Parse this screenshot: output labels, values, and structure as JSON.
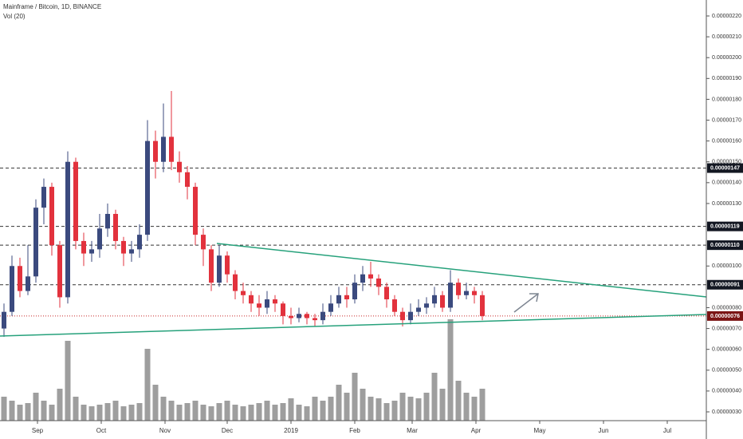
{
  "chart_data": {
    "type": "candlestick",
    "title": "Mainframe / Bitcoin, 1D, BINANCE",
    "subtitle": "Vol (20)",
    "up_color": "#3b4a7e",
    "down_color": "#e2323d",
    "volume_color": "#9e9e9e",
    "open": [
      7e-07,
      7.8e-07,
      1e-06,
      8.8e-07,
      9.5e-07,
      1.28e-06,
      1.38e-06,
      1.1e-06,
      8.5e-07,
      1.5e-06,
      1.12e-06,
      1.06e-06,
      1.08e-06,
      1.18e-06,
      1.25e-06,
      1.12e-06,
      1.06e-06,
      1.08e-06,
      1.15e-06,
      1.6e-06,
      1.5e-06,
      1.62e-06,
      1.5e-06,
      1.45e-06,
      1.38e-06,
      1.15e-06,
      1.08e-06,
      9.2e-07,
      1.05e-06,
      9.6e-07,
      8.8e-07,
      8.6e-07,
      8.2e-07,
      8e-07,
      8.4e-07,
      8.2e-07,
      7.6e-07,
      7.5e-07,
      7.7e-07,
      7.5e-07,
      7.4e-07,
      7.8e-07,
      8.2e-07,
      8.6e-07,
      8.4e-07,
      9.2e-07,
      9.6e-07,
      9.4e-07,
      9e-07,
      8.4e-07,
      7.8e-07,
      7.4e-07,
      7.8e-07,
      8e-07,
      8.2e-07,
      8.6e-07,
      8e-07,
      9.2e-07,
      8.6e-07,
      8.8e-07,
      8.6e-07
    ],
    "high": [
      8.2e-07,
      1.05e-06,
      1.04e-06,
      1.1e-06,
      1.32e-06,
      1.42e-06,
      1.4e-06,
      1.12e-06,
      1.55e-06,
      1.52e-06,
      1.16e-06,
      1.12e-06,
      1.25e-06,
      1.3e-06,
      1.27e-06,
      1.14e-06,
      1.12e-06,
      1.2e-06,
      1.7e-06,
      1.65e-06,
      1.78e-06,
      1.84e-06,
      1.55e-06,
      1.48e-06,
      1.4e-06,
      1.18e-06,
      1.1e-06,
      1.1e-06,
      1.07e-06,
      9.8e-07,
      9.2e-07,
      8.8e-07,
      8.6e-07,
      8.8e-07,
      8.6e-07,
      8.3e-07,
      8e-07,
      8e-07,
      7.8e-07,
      7.7e-07,
      8.2e-07,
      8.6e-07,
      9e-07,
      9e-07,
      9.6e-07,
      1e-06,
      1.02e-06,
      9.6e-07,
      9.2e-07,
      8.6e-07,
      8e-07,
      8.2e-07,
      8.4e-07,
      8.5e-07,
      9e-07,
      8.8e-07,
      9.8e-07,
      9.4e-07,
      9.2e-07,
      9e-07,
      8.8e-07
    ],
    "low": [
      6.6e-07,
      7.6e-07,
      8.5e-07,
      8.6e-07,
      9.2e-07,
      1.2e-06,
      1.05e-06,
      8e-07,
      8.2e-07,
      1.08e-06,
      1e-06,
      1.02e-06,
      1.04e-06,
      1.14e-06,
      1.08e-06,
      1e-06,
      1.02e-06,
      1.04e-06,
      1.12e-06,
      1.42e-06,
      1.45e-06,
      1.46e-06,
      1.4e-06,
      1.32e-06,
      1.1e-06,
      1e-06,
      8.8e-07,
      9e-07,
      9.2e-07,
      8.4e-07,
      8.2e-07,
      7.8e-07,
      7.6e-07,
      7.7e-07,
      7.8e-07,
      7.2e-07,
      7.2e-07,
      7.3e-07,
      7.2e-07,
      7.1e-07,
      7.2e-07,
      7.6e-07,
      8e-07,
      8e-07,
      8.2e-07,
      8.8e-07,
      9e-07,
      8.6e-07,
      8e-07,
      7.6e-07,
      7.1e-07,
      7.2e-07,
      7.6e-07,
      7.7e-07,
      8e-07,
      7.8e-07,
      7.8e-07,
      8.4e-07,
      8.4e-07,
      8.2e-07,
      7.4e-07
    ],
    "close": [
      7.8e-07,
      1e-06,
      8.8e-07,
      9.5e-07,
      1.28e-06,
      1.38e-06,
      1.1e-06,
      8.5e-07,
      1.5e-06,
      1.12e-06,
      1.06e-06,
      1.08e-06,
      1.18e-06,
      1.25e-06,
      1.12e-06,
      1.06e-06,
      1.08e-06,
      1.15e-06,
      1.6e-06,
      1.5e-06,
      1.62e-06,
      1.5e-06,
      1.45e-06,
      1.38e-06,
      1.15e-06,
      1.08e-06,
      9.2e-07,
      1.05e-06,
      9.6e-07,
      8.8e-07,
      8.6e-07,
      8.2e-07,
      8e-07,
      8.4e-07,
      8.2e-07,
      7.6e-07,
      7.5e-07,
      7.7e-07,
      7.5e-07,
      7.4e-07,
      7.8e-07,
      8.2e-07,
      8.6e-07,
      8.4e-07,
      9.2e-07,
      9.6e-07,
      9.4e-07,
      9e-07,
      8.4e-07,
      7.8e-07,
      7.4e-07,
      7.8e-07,
      8e-07,
      8.2e-07,
      8.6e-07,
      8e-07,
      9.2e-07,
      8.6e-07,
      8.8e-07,
      8.6e-07,
      7.6e-07
    ],
    "volume": [
      30,
      25,
      20,
      22,
      35,
      25,
      20,
      40,
      100,
      30,
      20,
      18,
      20,
      22,
      25,
      18,
      20,
      22,
      90,
      45,
      30,
      25,
      20,
      22,
      25,
      20,
      18,
      22,
      25,
      20,
      18,
      20,
      22,
      25,
      20,
      22,
      28,
      20,
      18,
      30,
      25,
      30,
      45,
      35,
      60,
      40,
      30,
      28,
      22,
      25,
      35,
      30,
      28,
      35,
      60,
      40,
      127,
      50,
      35,
      30,
      40
    ],
    "xlim": [
      -0.5,
      88
    ],
    "xticks": [
      {
        "value": 4.2,
        "label": "Sep"
      },
      {
        "value": 12.2,
        "label": "Oct"
      },
      {
        "value": 20.2,
        "label": "Nov"
      },
      {
        "value": 28.0,
        "label": "Dec"
      },
      {
        "value": 36.0,
        "label": "2019"
      },
      {
        "value": 44.0,
        "label": "Feb"
      },
      {
        "value": 51.2,
        "label": "Mar"
      },
      {
        "value": 59.2,
        "label": "Apr"
      },
      {
        "value": 67.2,
        "label": "May"
      },
      {
        "value": 75.2,
        "label": "Jun"
      },
      {
        "value": 83.2,
        "label": "Jul"
      }
    ],
    "ylim": [
      2.655e-07,
      2.2766e-06
    ],
    "yticks": [
      {
        "value": 2.2e-06,
        "label": "0.00000220"
      },
      {
        "value": 2.1e-06,
        "label": "0.00000210"
      },
      {
        "value": 2e-06,
        "label": "0.00000200"
      },
      {
        "value": 1.9e-06,
        "label": "0.00000190"
      },
      {
        "value": 1.8e-06,
        "label": "0.00000180"
      },
      {
        "value": 1.7e-06,
        "label": "0.00000170"
      },
      {
        "value": 1.6e-06,
        "label": "0.00000160"
      },
      {
        "value": 1.5e-06,
        "label": "0.00000150"
      },
      {
        "value": 1.4e-06,
        "label": "0.00000140"
      },
      {
        "value": 1.3e-06,
        "label": "0.00000130"
      },
      {
        "value": 1e-06,
        "label": "0.00000100"
      },
      {
        "value": 8e-07,
        "label": "0.00000080"
      },
      {
        "value": 7e-07,
        "label": "0.00000070"
      },
      {
        "value": 6e-07,
        "label": "0.00000060"
      },
      {
        "value": 5e-07,
        "label": "0.00000050"
      },
      {
        "value": 4e-07,
        "label": "0.00000040"
      },
      {
        "value": 3e-07,
        "label": "0.00000030"
      }
    ],
    "levels": [
      {
        "value": 1.47e-06,
        "label": "0.00000147"
      },
      {
        "value": 1.19e-06,
        "label": "0.00000119"
      },
      {
        "value": 1.1e-06,
        "label": "0.00000110"
      },
      {
        "value": 9.1e-07,
        "label": "0.00000091"
      }
    ],
    "last_price": {
      "value": 7.6e-07,
      "label": "0.00000076"
    }
  }
}
